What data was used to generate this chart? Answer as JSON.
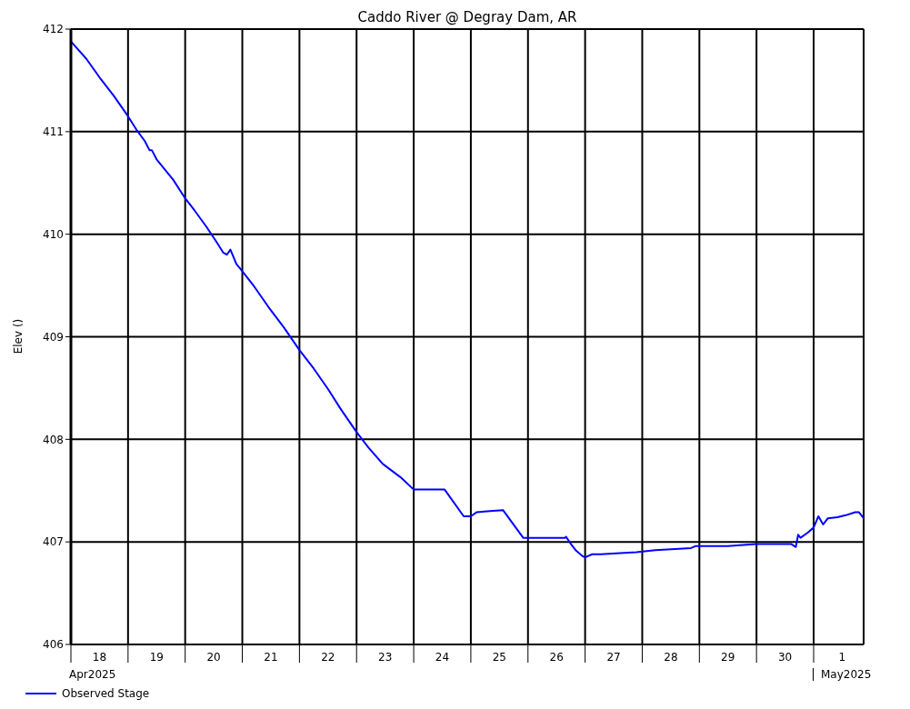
{
  "chart_data": {
    "type": "line",
    "title": "Caddo River @ Degray Dam, AR",
    "ylabel": "Elev ()",
    "x": [
      "2025-04-18T00:00",
      "2025-04-18T06:30",
      "2025-04-18T12:00",
      "2025-04-18T18:00",
      "2025-04-19T00:00",
      "2025-04-19T03:30",
      "2025-04-19T07:00",
      "2025-04-19T09:00",
      "2025-04-19T10:00",
      "2025-04-19T12:00",
      "2025-04-19T19:00",
      "2025-04-20T00:00",
      "2025-04-20T04:00",
      "2025-04-20T09:00",
      "2025-04-20T13:00",
      "2025-04-20T16:00",
      "2025-04-20T17:30",
      "2025-04-20T19:00",
      "2025-04-20T21:30",
      "2025-04-21T00:00",
      "2025-04-21T05:00",
      "2025-04-21T11:00",
      "2025-04-21T17:30",
      "2025-04-22T00:00",
      "2025-04-22T06:00",
      "2025-04-22T12:00",
      "2025-04-22T17:30",
      "2025-04-23T00:00",
      "2025-04-23T05:00",
      "2025-04-23T11:00",
      "2025-04-23T18:30",
      "2025-04-24T00:00",
      "2025-04-24T13:00",
      "2025-04-24T21:00",
      "2025-04-25T00:00",
      "2025-04-25T02:30",
      "2025-04-25T08:00",
      "2025-04-25T13:30",
      "2025-04-25T22:00",
      "2025-04-26T15:30",
      "2025-04-26T16:00",
      "2025-04-26T18:00",
      "2025-04-26T20:00",
      "2025-04-26T23:00",
      "2025-04-27T00:00",
      "2025-04-27T03:00",
      "2025-04-27T06:30",
      "2025-04-27T21:30",
      "2025-04-28T05:30",
      "2025-04-28T20:30",
      "2025-04-28T22:30",
      "2025-04-29T12:00",
      "2025-04-30T00:00",
      "2025-04-30T14:30",
      "2025-04-30T16:30",
      "2025-04-30T17:30",
      "2025-04-30T18:30",
      "2025-04-30T21:30",
      "2025-05-01T00:00",
      "2025-05-01T02:00",
      "2025-05-01T04:00",
      "2025-05-01T06:00",
      "2025-05-01T10:00",
      "2025-05-01T13:30",
      "2025-05-01T17:30",
      "2025-05-01T19:00",
      "2025-05-01T21:00"
    ],
    "series": [
      {
        "name": "Observed Stage",
        "color": "#0000ff",
        "values": [
          411.88,
          411.71,
          411.53,
          411.35,
          411.15,
          411.02,
          410.91,
          410.82,
          410.82,
          410.73,
          410.53,
          410.35,
          410.23,
          410.07,
          409.93,
          409.82,
          409.8,
          409.85,
          409.71,
          409.64,
          409.49,
          409.29,
          409.09,
          408.87,
          408.69,
          408.49,
          408.29,
          408.07,
          407.92,
          407.76,
          407.63,
          407.51,
          407.51,
          407.25,
          407.25,
          407.29,
          407.3,
          407.31,
          407.04,
          407.04,
          407.05,
          406.98,
          406.92,
          406.86,
          406.85,
          406.88,
          406.88,
          406.9,
          406.92,
          406.94,
          406.96,
          406.96,
          406.98,
          406.98,
          406.95,
          407.07,
          407.04,
          407.09,
          407.14,
          407.25,
          407.17,
          407.23,
          407.24,
          407.26,
          407.29,
          407.29,
          407.23
        ]
      }
    ],
    "xlim": [
      "2025-04-18T00:00",
      "2025-05-01T21:00"
    ],
    "xticks": [
      {
        "value": "2025-04-18T00:00",
        "label": null
      },
      {
        "value": "2025-04-18T12:00",
        "label": "18"
      },
      {
        "value": "2025-04-19T00:00",
        "label": null
      },
      {
        "value": "2025-04-19T12:00",
        "label": "19"
      },
      {
        "value": "2025-04-20T00:00",
        "label": null
      },
      {
        "value": "2025-04-20T12:00",
        "label": "20"
      },
      {
        "value": "2025-04-21T00:00",
        "label": null
      },
      {
        "value": "2025-04-21T12:00",
        "label": "21"
      },
      {
        "value": "2025-04-22T00:00",
        "label": null
      },
      {
        "value": "2025-04-22T12:00",
        "label": "22"
      },
      {
        "value": "2025-04-23T00:00",
        "label": null
      },
      {
        "value": "2025-04-23T12:00",
        "label": "23"
      },
      {
        "value": "2025-04-24T00:00",
        "label": null
      },
      {
        "value": "2025-04-24T12:00",
        "label": "24"
      },
      {
        "value": "2025-04-25T00:00",
        "label": null
      },
      {
        "value": "2025-04-25T12:00",
        "label": "25"
      },
      {
        "value": "2025-04-26T00:00",
        "label": null
      },
      {
        "value": "2025-04-26T12:00",
        "label": "26"
      },
      {
        "value": "2025-04-27T00:00",
        "label": null
      },
      {
        "value": "2025-04-27T12:00",
        "label": "27"
      },
      {
        "value": "2025-04-28T00:00",
        "label": null
      },
      {
        "value": "2025-04-28T12:00",
        "label": "28"
      },
      {
        "value": "2025-04-29T00:00",
        "label": null
      },
      {
        "value": "2025-04-29T12:00",
        "label": "29"
      },
      {
        "value": "2025-04-30T00:00",
        "label": null
      },
      {
        "value": "2025-04-30T12:00",
        "label": "30"
      },
      {
        "value": "2025-05-01T00:00",
        "label": null
      },
      {
        "value": "2025-05-01T12:00",
        "label": "1"
      }
    ],
    "ylim": [
      406,
      412
    ],
    "yticks": [
      406,
      407,
      408,
      409,
      410,
      411,
      412
    ],
    "grid": true,
    "legend": "bottom left",
    "marker": "none",
    "line_style": "solid",
    "annotations": [
      "Apr2025",
      "May2025"
    ]
  }
}
